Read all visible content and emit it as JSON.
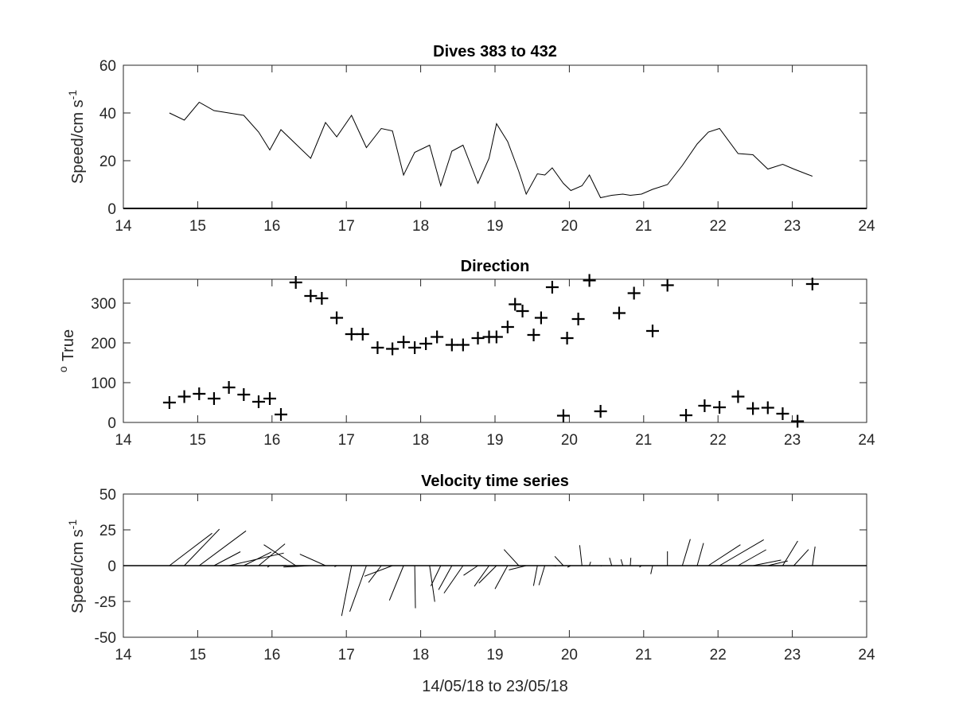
{
  "chart_data": [
    {
      "type": "line",
      "title": "Dives 383 to 432",
      "ylabel_text": "Speed/cm s",
      "ylabel_sup": "-1",
      "xlim": [
        14,
        24
      ],
      "ylim": [
        0,
        60
      ],
      "xticks": [
        14,
        15,
        16,
        17,
        18,
        19,
        20,
        21,
        22,
        23,
        24
      ],
      "yticks": [
        0,
        20,
        40,
        60
      ],
      "series": [
        {
          "x": [
            14.62,
            14.82,
            15.02,
            15.22,
            15.42,
            15.62,
            15.82,
            15.97,
            16.12,
            16.32,
            16.52,
            16.72,
            16.87,
            17.07,
            17.27,
            17.47,
            17.62,
            17.77,
            17.92,
            18.12,
            18.27,
            18.42,
            18.57,
            18.77,
            18.92,
            19.02,
            19.17,
            19.32,
            19.42,
            19.57,
            19.67,
            19.77,
            19.92,
            20.02,
            20.17,
            20.27,
            20.42,
            20.57,
            20.72,
            20.82,
            20.97,
            21.12,
            21.32,
            21.52,
            21.72,
            21.87,
            22.02,
            22.27,
            22.47,
            22.67,
            22.87,
            23.02,
            23.27
          ],
          "y": [
            40,
            37,
            44.5,
            41,
            40,
            39,
            32,
            24.5,
            33,
            27,
            21,
            36,
            30,
            39,
            25.5,
            33.5,
            32.5,
            14,
            23.5,
            26.5,
            9.5,
            24,
            26.5,
            10.5,
            21,
            35.5,
            28,
            15.5,
            6,
            14.5,
            14,
            17,
            10.5,
            7.5,
            9.5,
            14,
            4.5,
            5.5,
            6,
            5.5,
            6,
            8,
            10,
            18,
            27,
            32,
            33.5,
            23,
            22.5,
            16.5,
            18.5,
            16.5,
            13.5
          ]
        }
      ]
    },
    {
      "type": "scatter",
      "title": "Direction",
      "ylabel_sup": "o",
      "ylabel_text": "True",
      "xlim": [
        14,
        24
      ],
      "ylim": [
        0,
        360
      ],
      "xticks": [
        14,
        15,
        16,
        17,
        18,
        19,
        20,
        21,
        22,
        23,
        24
      ],
      "yticks": [
        0,
        100,
        200,
        300
      ],
      "series": [
        {
          "x": [
            14.62,
            14.82,
            15.02,
            15.22,
            15.42,
            15.62,
            15.82,
            15.97,
            16.12,
            16.32,
            16.52,
            16.67,
            16.87,
            17.07,
            17.22,
            17.42,
            17.62,
            17.77,
            17.92,
            18.07,
            18.22,
            18.42,
            18.57,
            18.77,
            18.92,
            19.02,
            19.17,
            19.27,
            19.37,
            19.52,
            19.62,
            19.77,
            19.92,
            19.97,
            20.12,
            20.27,
            20.42,
            20.67,
            20.87,
            21.12,
            21.32,
            21.57,
            21.82,
            22.02,
            22.27,
            22.47,
            22.67,
            22.87,
            23.07,
            23.27
          ],
          "y": [
            50,
            65,
            72,
            60,
            88,
            70,
            52,
            60,
            20,
            352,
            318,
            312,
            263,
            222,
            222,
            188,
            185,
            202,
            188,
            198,
            215,
            195,
            195,
            212,
            215,
            215,
            240,
            297,
            280,
            220,
            263,
            340,
            17,
            212,
            260,
            357,
            28,
            275,
            325,
            230,
            345,
            18,
            42,
            38,
            65,
            35,
            37,
            22,
            3,
            348
          ]
        }
      ]
    },
    {
      "type": "stick",
      "title": "Velocity time series",
      "ylabel_text": "Speed/cm s",
      "ylabel_sup": "-1",
      "xlabel": "14/05/18 to 23/05/18",
      "xlim": [
        14,
        24
      ],
      "ylim": [
        -50,
        50
      ],
      "xticks": [
        14,
        15,
        16,
        17,
        18,
        19,
        20,
        21,
        22,
        23,
        24
      ],
      "yticks": [
        -50,
        -25,
        0,
        25,
        50
      ],
      "yticklabels": [
        "-50",
        "-25",
        "0",
        "25",
        "50"
      ],
      "note": "stick vectors: x = time (days), u = east speed, v = north speed (cm/s)",
      "x": [
        14.62,
        14.82,
        15.02,
        15.22,
        15.42,
        15.62,
        15.82,
        15.97,
        16.12,
        16.32,
        16.52,
        16.72,
        16.87,
        17.07,
        17.27,
        17.47,
        17.62,
        17.77,
        17.92,
        18.12,
        18.27,
        18.42,
        18.57,
        18.77,
        18.92,
        19.02,
        19.17,
        19.32,
        19.42,
        19.57,
        19.67,
        19.77,
        19.92,
        20.02,
        20.17,
        20.27,
        20.42,
        20.57,
        20.72,
        20.82,
        20.97,
        21.12,
        21.32,
        21.52,
        21.72,
        21.87,
        22.02,
        22.27,
        22.47,
        22.67,
        22.87,
        23.02,
        23.27
      ],
      "u": [
        29.8,
        24.5,
        32.7,
        18.4,
        38.3,
        19.2,
        18.4,
        -1.6,
        3.7,
        -22.3,
        -19.0,
        -17.9,
        -1.5,
        -6.9,
        -11.6,
        -8.9,
        -19.5,
        -9.9,
        0.5,
        3.6,
        -6.9,
        -9.3,
        -13.3,
        -10.0,
        -10.3,
        -12.3,
        -8.8,
        -10.3,
        -12.1,
        -2.7,
        -4.1,
        2.8,
        -6.0,
        -2.3,
        -1.6,
        0.9,
        0.7,
        -1.5,
        -1.3,
        0.4,
        -1.4,
        -1.3,
        0.0,
        5.6,
        4.4,
        22.4,
        30.9,
        19.6,
        19.6,
        13.9,
        10.5,
        10.3,
        1.9
      ],
      "v": [
        22.6,
        25.5,
        24.3,
        9.7,
        8.8,
        9.5,
        15.2,
        -1.1,
        0.2,
        14.6,
        -1.0,
        8.0,
        -0.8,
        -35.1,
        -32.1,
        -11.8,
        -7.4,
        -24.3,
        -29.7,
        -25.2,
        -14.2,
        -16.9,
        -19.2,
        -6.8,
        -14.5,
        -12.3,
        -16.3,
        11.3,
        -3.0,
        -14.1,
        -13.6,
        -0.2,
        6.5,
        -1.1,
        14.3,
        2.7,
        -0.3,
        5.5,
        4.4,
        5.5,
        -1.1,
        -5.9,
        10.0,
        18.5,
        15.8,
        14.6,
        18.1,
        11.1,
        3.9,
        3.3,
        17.2,
        11.3,
        13.3
      ]
    }
  ]
}
